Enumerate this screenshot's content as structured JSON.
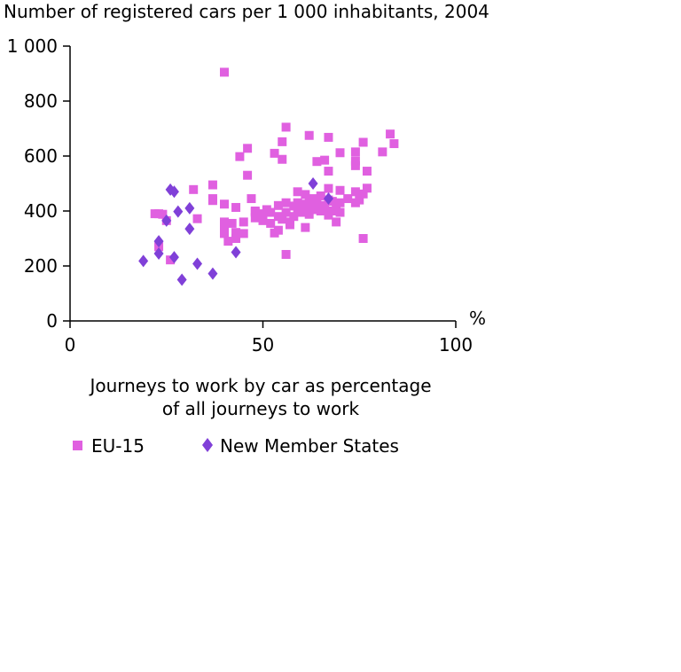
{
  "chart_data": {
    "type": "scatter",
    "title": "Number of registered cars per 1 000 inhabitants, 2004",
    "xlabel_lines": [
      "Journeys to work by car as percentage",
      "of all journeys to work"
    ],
    "x_unit": "%",
    "xlim": [
      0,
      100
    ],
    "ylim": [
      0,
      1000
    ],
    "x_ticks": [
      0,
      50,
      100
    ],
    "x_tick_labels": [
      "0",
      "50",
      "100"
    ],
    "y_ticks": [
      0,
      200,
      400,
      600,
      800,
      1000
    ],
    "y_tick_labels": [
      "0",
      "200",
      "400",
      "600",
      "800",
      "1 000"
    ],
    "grid": false,
    "legend_position": "bottom",
    "series": [
      {
        "name": "EU-15",
        "color": "#e060e0",
        "marker": "square",
        "points": [
          [
            40,
            905
          ],
          [
            56,
            705
          ],
          [
            62,
            675
          ],
          [
            67,
            668
          ],
          [
            83,
            680
          ],
          [
            84,
            645
          ],
          [
            76,
            650
          ],
          [
            74,
            615
          ],
          [
            81,
            615
          ],
          [
            70,
            612
          ],
          [
            53,
            610
          ],
          [
            46,
            628
          ],
          [
            55,
            652
          ],
          [
            44,
            598
          ],
          [
            55,
            588
          ],
          [
            64,
            580
          ],
          [
            66,
            585
          ],
          [
            74,
            582
          ],
          [
            74,
            565
          ],
          [
            77,
            545
          ],
          [
            67,
            545
          ],
          [
            46,
            530
          ],
          [
            37,
            495
          ],
          [
            32,
            478
          ],
          [
            67,
            482
          ],
          [
            70,
            475
          ],
          [
            77,
            483
          ],
          [
            76,
            462
          ],
          [
            74,
            470
          ],
          [
            59,
            470
          ],
          [
            61,
            460
          ],
          [
            47,
            445
          ],
          [
            37,
            445
          ],
          [
            33,
            372
          ],
          [
            37,
            438
          ],
          [
            40,
            425
          ],
          [
            43,
            413
          ],
          [
            48,
            400
          ],
          [
            50,
            385
          ],
          [
            52,
            395
          ],
          [
            54,
            420
          ],
          [
            56,
            430
          ],
          [
            58,
            418
          ],
          [
            60,
            425
          ],
          [
            62,
            440
          ],
          [
            64,
            430
          ],
          [
            66,
            420
          ],
          [
            68,
            435
          ],
          [
            70,
            430
          ],
          [
            72,
            445
          ],
          [
            74,
            430
          ],
          [
            75,
            440
          ],
          [
            48,
            375
          ],
          [
            50,
            365
          ],
          [
            52,
            355
          ],
          [
            54,
            380
          ],
          [
            56,
            395
          ],
          [
            57,
            360
          ],
          [
            59,
            405
          ],
          [
            61,
            410
          ],
          [
            63,
            415
          ],
          [
            65,
            400
          ],
          [
            67,
            385
          ],
          [
            69,
            360
          ],
          [
            70,
            395
          ],
          [
            49,
            390
          ],
          [
            51,
            405
          ],
          [
            53,
            320
          ],
          [
            55,
            370
          ],
          [
            57,
            350
          ],
          [
            58,
            380
          ],
          [
            60,
            395
          ],
          [
            62,
            388
          ],
          [
            64,
            405
          ],
          [
            66,
            415
          ],
          [
            68,
            400
          ],
          [
            45,
            360
          ],
          [
            42,
            355
          ],
          [
            40,
            360
          ],
          [
            40,
            345
          ],
          [
            43,
            300
          ],
          [
            41,
            290
          ],
          [
            45,
            318
          ],
          [
            40,
            318
          ],
          [
            43,
            322
          ],
          [
            48,
            395
          ],
          [
            50,
            380
          ],
          [
            61,
            340
          ],
          [
            56,
            242
          ],
          [
            76,
            300
          ],
          [
            22,
            390
          ],
          [
            23,
            390
          ],
          [
            24,
            388
          ],
          [
            25,
            365
          ],
          [
            26,
            222
          ],
          [
            23,
            270
          ],
          [
            54,
            330
          ],
          [
            59,
            430
          ],
          [
            63,
            445
          ],
          [
            65,
            455
          ],
          [
            67,
            440
          ],
          [
            69,
            405
          ]
        ]
      },
      {
        "name": "New Member States",
        "color": "#8040d8",
        "marker": "diamond",
        "points": [
          [
            26,
            478
          ],
          [
            27,
            470
          ],
          [
            63,
            500
          ],
          [
            67,
            445
          ],
          [
            28,
            398
          ],
          [
            31,
            410
          ],
          [
            25,
            365
          ],
          [
            31,
            335
          ],
          [
            23,
            290
          ],
          [
            19,
            218
          ],
          [
            23,
            245
          ],
          [
            27,
            232
          ],
          [
            33,
            208
          ],
          [
            37,
            172
          ],
          [
            29,
            150
          ],
          [
            43,
            250
          ]
        ]
      }
    ]
  }
}
